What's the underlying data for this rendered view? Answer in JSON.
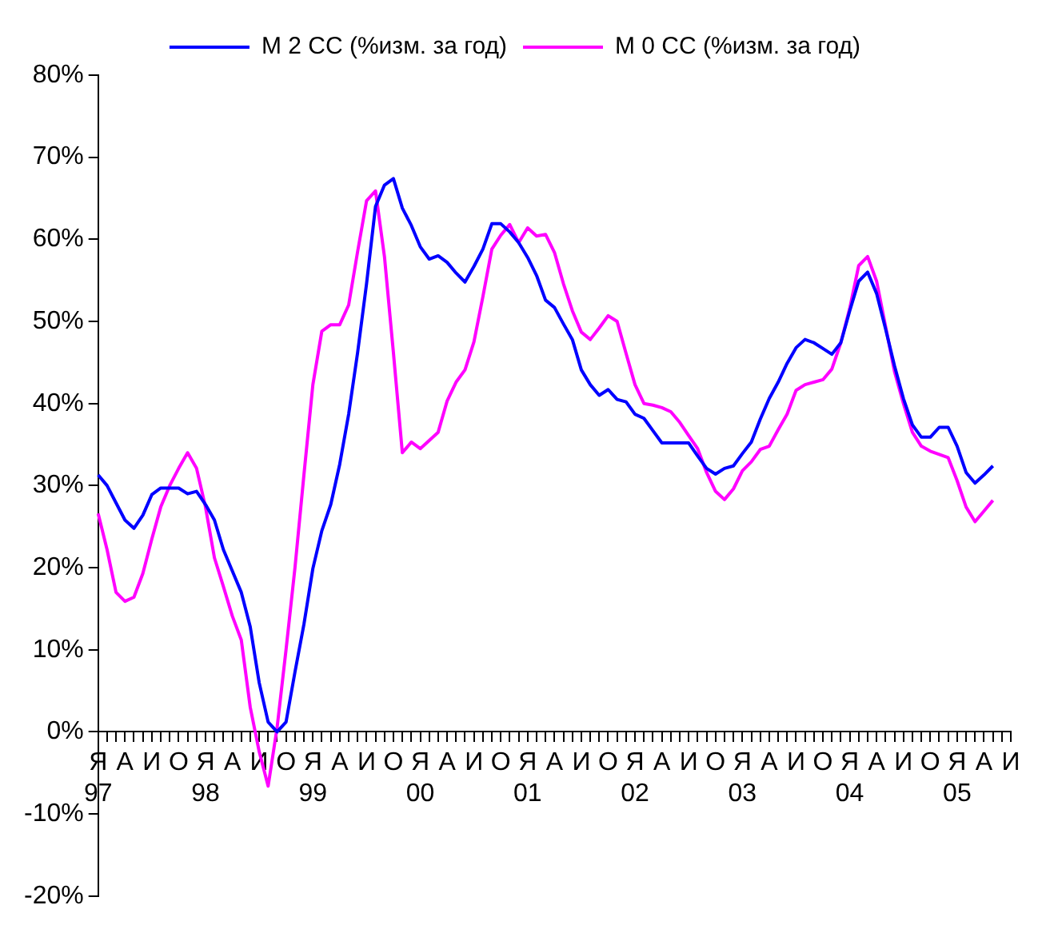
{
  "chart_data": {
    "type": "line",
    "categories": [
      "Я\n97",
      null,
      null,
      "А",
      null,
      null,
      "И",
      null,
      null,
      "О",
      null,
      null,
      "Я\n98",
      null,
      null,
      "А",
      null,
      null,
      "И",
      null,
      null,
      "О",
      null,
      null,
      "Я\n99",
      null,
      null,
      "А",
      null,
      null,
      "И",
      null,
      null,
      "О",
      null,
      null,
      "Я\n00",
      null,
      null,
      "А",
      null,
      null,
      "И",
      null,
      null,
      "О",
      null,
      null,
      "Я\n01",
      null,
      null,
      "А",
      null,
      null,
      "И",
      null,
      null,
      "О",
      null,
      null,
      "Я\n02",
      null,
      null,
      "А",
      null,
      null,
      "И",
      null,
      null,
      "О",
      null,
      null,
      "Я\n03",
      null,
      null,
      "А",
      null,
      null,
      "И",
      null,
      null,
      "О",
      null,
      null,
      "Я\n04",
      null,
      null,
      "А",
      null,
      null,
      "И",
      null,
      null,
      "О",
      null,
      null,
      "Я\n05",
      null,
      null,
      "А",
      null,
      null,
      "И"
    ],
    "series": [
      {
        "name": "M 2 CC (%изм. за год)",
        "color": "#0000ff",
        "values": [
          31.3,
          30.0,
          27.9,
          25.8,
          24.8,
          26.4,
          28.9,
          29.7,
          29.7,
          29.7,
          29.0,
          29.3,
          27.7,
          25.8,
          22.2,
          19.6,
          17.0,
          12.8,
          6.0,
          1.2,
          0,
          1.2,
          7.3,
          13.1,
          19.9,
          24.5,
          27.7,
          32.6,
          38.7,
          46.2,
          54.6,
          64.0,
          66.6,
          67.4,
          63.8,
          61.7,
          59.1,
          57.6,
          58.0,
          57.2,
          55.9,
          54.8,
          56.7,
          58.8,
          61.9,
          61.9,
          60.9,
          59.6,
          57.8,
          55.6,
          52.6,
          51.7,
          49.7,
          47.8,
          44.1,
          42.3,
          41.0,
          41.7,
          40.5,
          40.2,
          38.7,
          38.2,
          36.7,
          35.2,
          35.2,
          35.2,
          35.2,
          33.6,
          32.1,
          31.4,
          32.1,
          32.4,
          33.9,
          35.3,
          38.1,
          40.6,
          42.6,
          44.9,
          46.8,
          47.8,
          47.4,
          46.7,
          46.0,
          47.4,
          51.3,
          54.9,
          56.0,
          53.4,
          49.1,
          44.6,
          40.6,
          37.4,
          35.9,
          35.9,
          37.1,
          37.1,
          34.8,
          31.6,
          30.3,
          31.3,
          32.4,
          null,
          null
        ]
      },
      {
        "name": "M 0 CC (%изм. за год)",
        "color": "#ff00ff",
        "values": [
          26.6,
          22.2,
          17.0,
          15.9,
          16.4,
          19.3,
          23.5,
          27.4,
          30.0,
          32.1,
          34.0,
          32.1,
          27.4,
          21.2,
          17.7,
          14.1,
          11.2,
          3.0,
          -2.4,
          -6.6,
          0.5,
          10.0,
          20.0,
          31.3,
          42.3,
          48.8,
          49.6,
          49.6,
          52.0,
          58.5,
          64.7,
          65.9,
          57.9,
          46.2,
          34.0,
          35.3,
          34.5,
          35.5,
          36.5,
          40.3,
          42.6,
          44.1,
          47.5,
          53.0,
          58.8,
          60.5,
          61.8,
          59.6,
          61.4,
          60.4,
          60.6,
          58.4,
          54.6,
          51.3,
          48.7,
          47.8,
          49.2,
          50.7,
          50.0,
          46.1,
          42.3,
          40.0,
          39.8,
          39.5,
          39.0,
          37.7,
          36.1,
          34.5,
          31.6,
          29.3,
          28.3,
          29.6,
          31.8,
          32.9,
          34.4,
          34.8,
          36.8,
          38.7,
          41.6,
          42.3,
          42.6,
          42.9,
          44.2,
          47.4,
          51.6,
          56.8,
          57.9,
          54.9,
          49.4,
          43.9,
          40.0,
          36.5,
          34.8,
          34.2,
          33.8,
          33.4,
          30.6,
          27.4,
          25.6,
          26.9,
          28.2,
          null,
          null
        ]
      }
    ],
    "ylim": [
      -20,
      80
    ],
    "yticks": [
      {
        "value": -20,
        "label": "-20%"
      },
      {
        "value": -10,
        "label": "-10%"
      },
      {
        "value": 0,
        "label": "0%"
      },
      {
        "value": 10,
        "label": "10%"
      },
      {
        "value": 20,
        "label": "20%"
      },
      {
        "value": 30,
        "label": "30%"
      },
      {
        "value": 40,
        "label": "40%"
      },
      {
        "value": 50,
        "label": "50%"
      },
      {
        "value": 60,
        "label": "60%"
      },
      {
        "value": 70,
        "label": "70%"
      },
      {
        "value": 80,
        "label": "80%"
      }
    ],
    "legend": "top",
    "marker": "none",
    "line_style": "solid"
  }
}
